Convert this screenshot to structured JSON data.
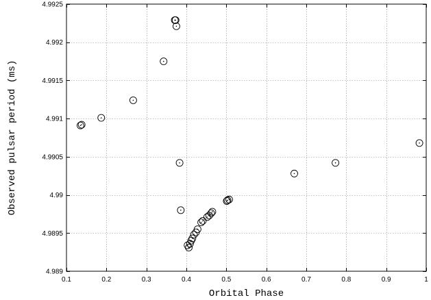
{
  "chart_data": {
    "type": "scatter",
    "title": "",
    "xlabel": "Orbital Phase",
    "ylabel": "Observed pulsar period (ms)",
    "xlim": [
      0.1,
      1.0
    ],
    "ylim": [
      4.989,
      4.9925
    ],
    "grid": true,
    "marker": "circle-dot",
    "x_ticks": [
      0.1,
      0.2,
      0.3,
      0.4,
      0.5,
      0.6,
      0.7,
      0.8,
      0.9,
      1.0
    ],
    "x_tick_labels": [
      "0.1",
      "0.2",
      "0.3",
      "0.4",
      "0.5",
      "0.6",
      "0.7",
      "0.8",
      "0.9",
      "1"
    ],
    "y_ticks": [
      4.989,
      4.9895,
      4.99,
      4.9905,
      4.991,
      4.9915,
      4.992,
      4.9925
    ],
    "y_tick_labels": [
      "4.989",
      "4.9895",
      "4.99",
      "4.9905",
      "4.991",
      "4.9915",
      "4.992",
      "4.9925"
    ],
    "points": [
      {
        "x": 0.135,
        "y": 4.99091
      },
      {
        "x": 0.138,
        "y": 4.99092
      },
      {
        "x": 0.187,
        "y": 4.99101
      },
      {
        "x": 0.267,
        "y": 4.99124
      },
      {
        "x": 0.343,
        "y": 4.99175
      },
      {
        "x": 0.371,
        "y": 4.99229
      },
      {
        "x": 0.373,
        "y": 4.99229
      },
      {
        "x": 0.375,
        "y": 4.99221
      },
      {
        "x": 0.383,
        "y": 4.99042
      },
      {
        "x": 0.386,
        "y": 4.9898
      },
      {
        "x": 0.403,
        "y": 4.98934
      },
      {
        "x": 0.406,
        "y": 4.98931
      },
      {
        "x": 0.409,
        "y": 4.98936
      },
      {
        "x": 0.412,
        "y": 4.9894
      },
      {
        "x": 0.415,
        "y": 4.98943
      },
      {
        "x": 0.419,
        "y": 4.98948
      },
      {
        "x": 0.424,
        "y": 4.98951
      },
      {
        "x": 0.428,
        "y": 4.98955
      },
      {
        "x": 0.437,
        "y": 4.98964
      },
      {
        "x": 0.441,
        "y": 4.98966
      },
      {
        "x": 0.452,
        "y": 4.98971
      },
      {
        "x": 0.457,
        "y": 4.98973
      },
      {
        "x": 0.462,
        "y": 4.98976
      },
      {
        "x": 0.465,
        "y": 4.98978
      },
      {
        "x": 0.501,
        "y": 4.98992
      },
      {
        "x": 0.503,
        "y": 4.98993
      },
      {
        "x": 0.507,
        "y": 4.98994
      },
      {
        "x": 0.67,
        "y": 4.99028
      },
      {
        "x": 0.773,
        "y": 4.99042
      },
      {
        "x": 0.983,
        "y": 4.99068
      }
    ]
  }
}
